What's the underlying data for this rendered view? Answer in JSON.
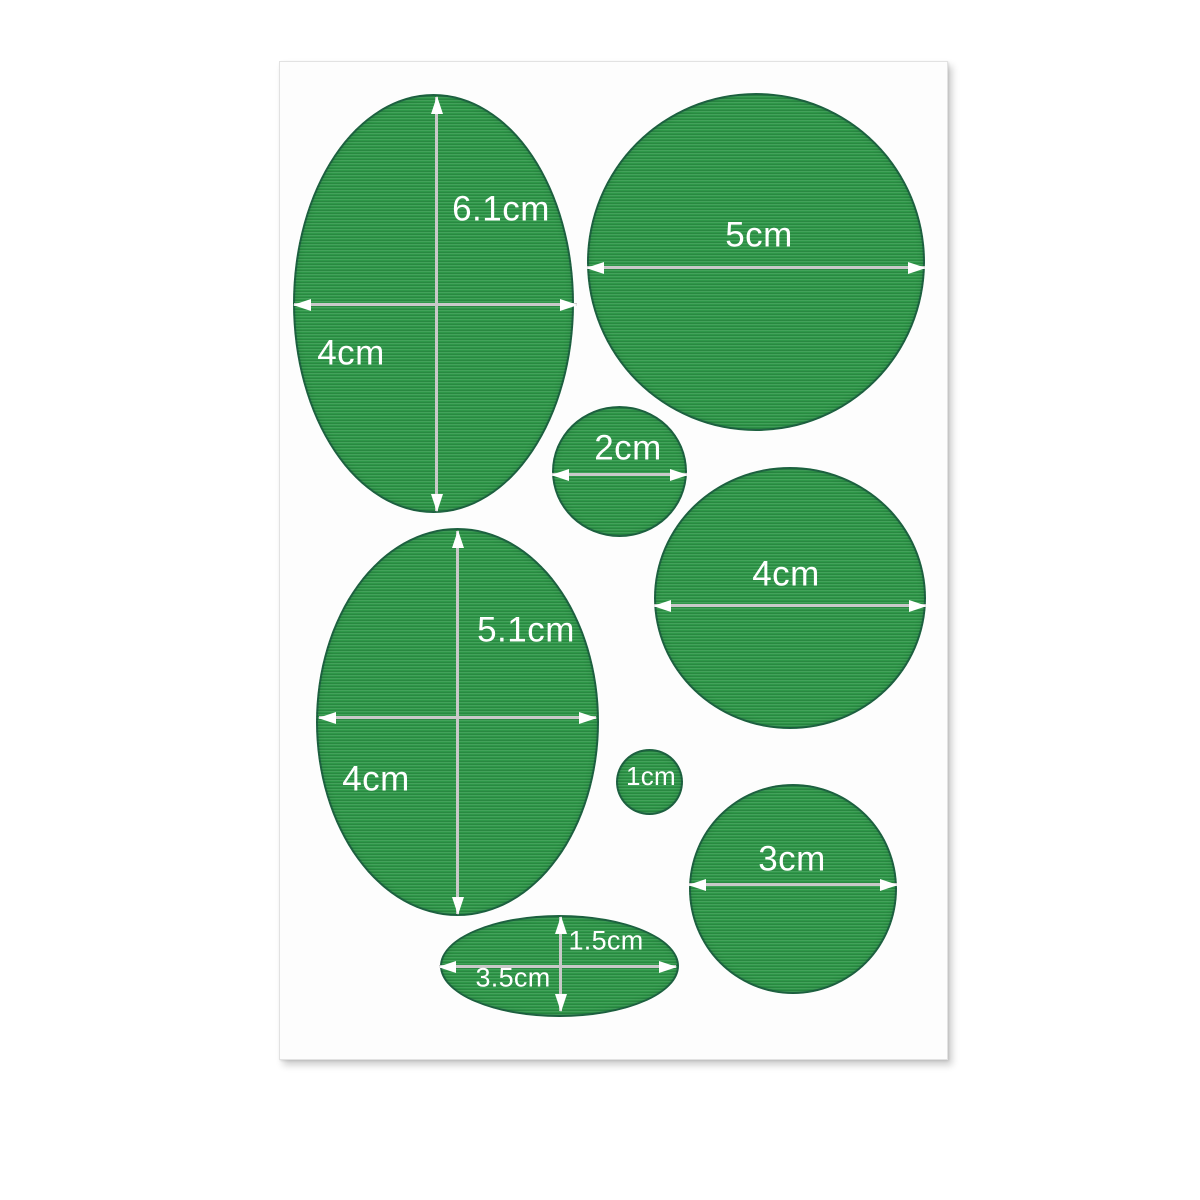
{
  "colors": {
    "patch_green": "#2e9748",
    "patch_edge": "rgba(21,75,62,0.65)",
    "arrow_shaft": "#c9c9c9",
    "arrow_head": "#ffffff",
    "label_color": "#ffffff",
    "sheet_color": "#fdfdfd",
    "page_bg": "#ffffff"
  },
  "patches": [
    {
      "name": "large-oval",
      "shape": "oval",
      "height_label": "6.1cm",
      "width_label": "4cm"
    },
    {
      "name": "circle-5cm",
      "shape": "circle",
      "width_label": "5cm"
    },
    {
      "name": "circle-2cm",
      "shape": "circle",
      "width_label": "2cm"
    },
    {
      "name": "circle-4cm",
      "shape": "circle",
      "width_label": "4cm"
    },
    {
      "name": "medium-oval",
      "shape": "oval",
      "height_label": "5.1cm",
      "width_label": "4cm"
    },
    {
      "name": "circle-1cm",
      "shape": "circle",
      "width_label": "1cm"
    },
    {
      "name": "circle-3cm",
      "shape": "circle",
      "width_label": "3cm"
    },
    {
      "name": "small-ellipse",
      "shape": "oval",
      "height_label": "1.5cm",
      "width_label": "3.5cm"
    }
  ]
}
